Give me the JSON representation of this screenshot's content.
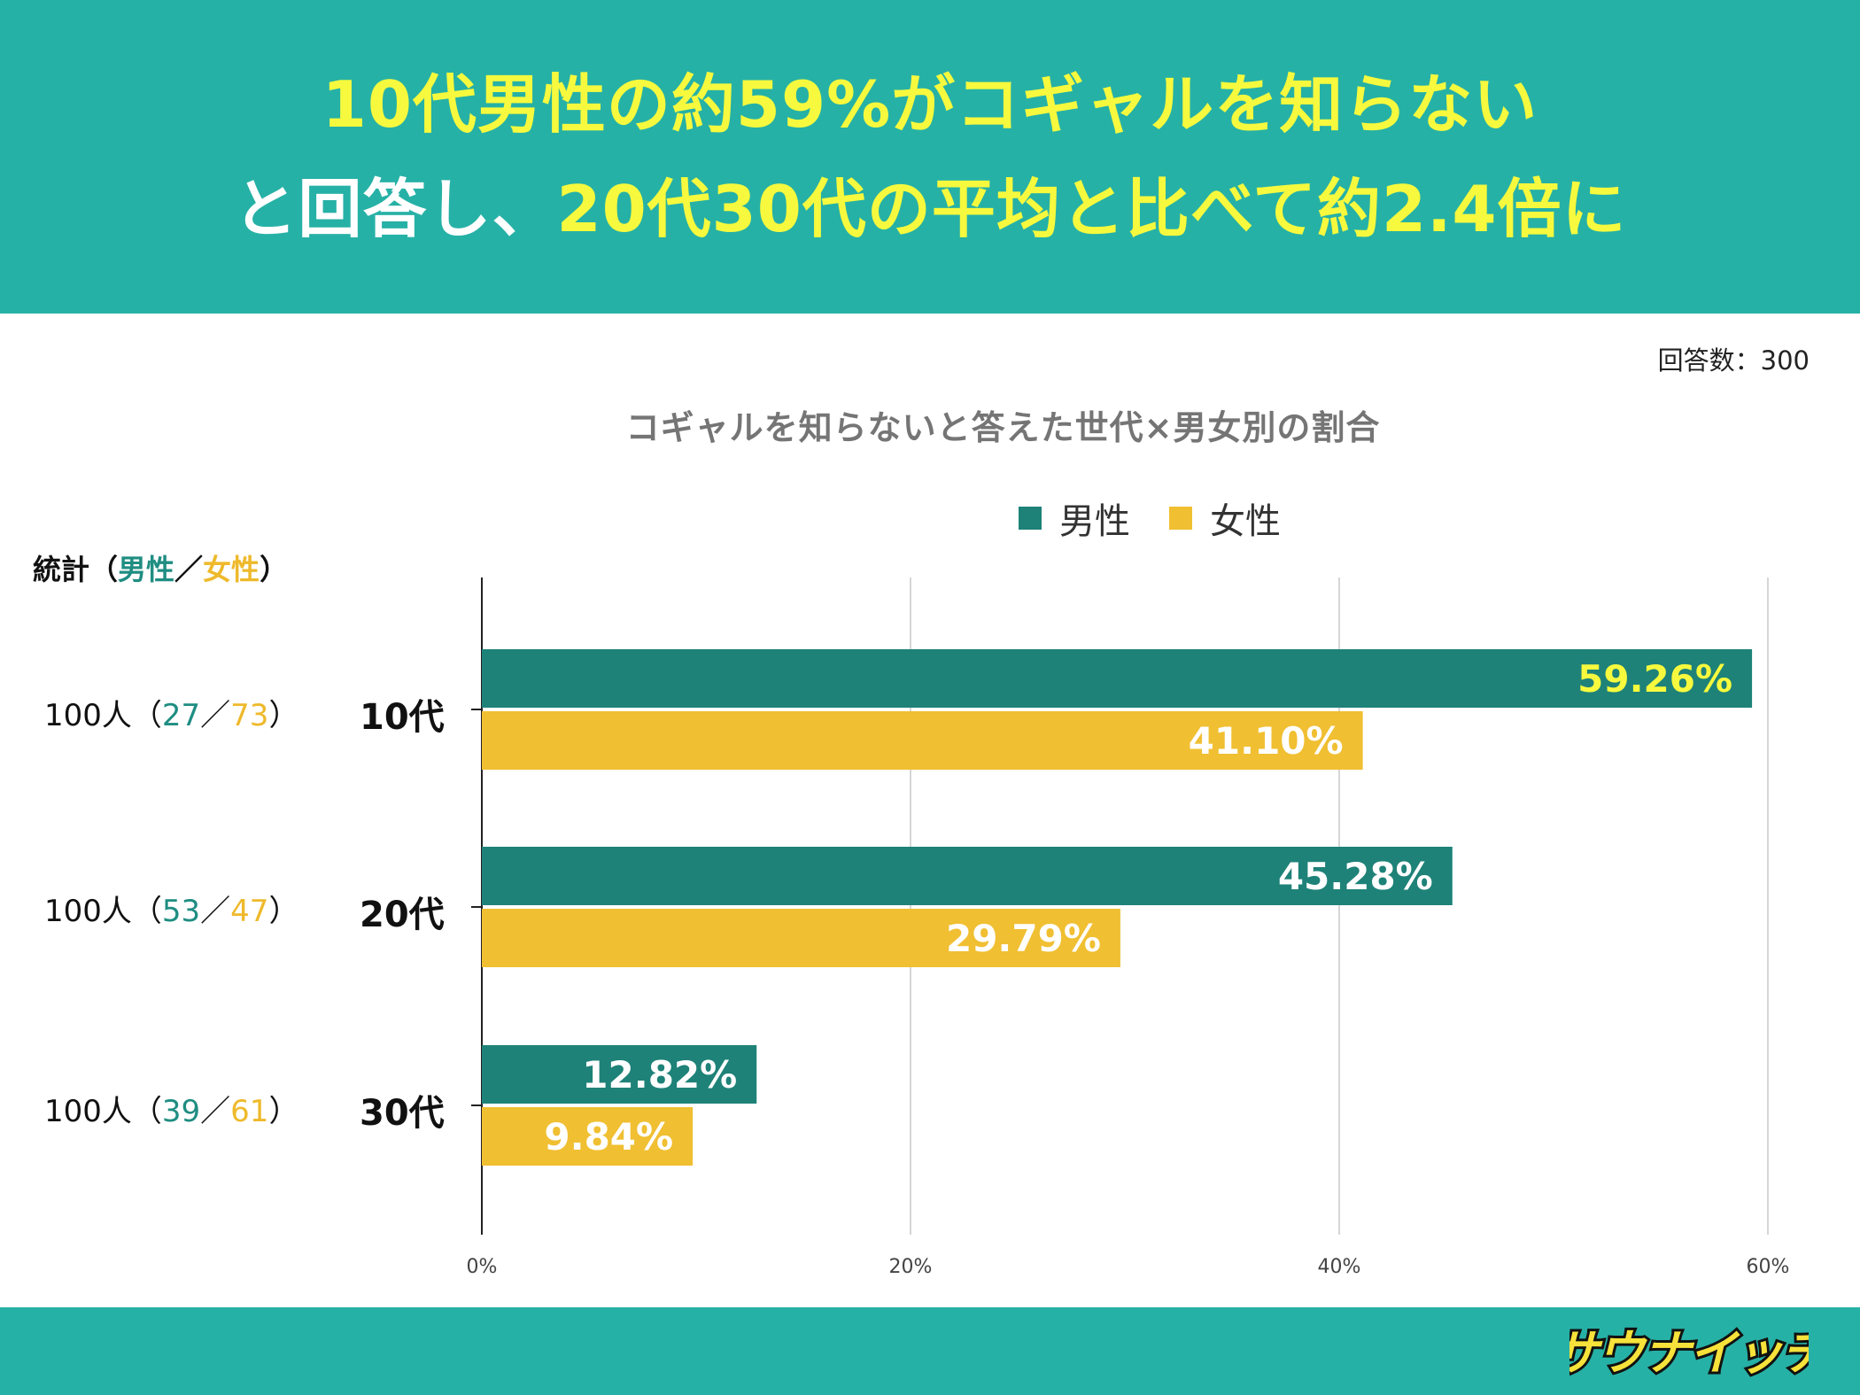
{
  "header": {
    "line1": [
      {
        "text": "10代男性の約59%がコギャルを知らない",
        "color": "yellow"
      }
    ],
    "line2": [
      {
        "text": "と回答し、",
        "color": "white"
      },
      {
        "text": "20代30代の平均と比べて約2.4倍に",
        "color": "yellow"
      }
    ]
  },
  "respondents": "回答数：300",
  "stats": {
    "header": {
      "label": "統計（",
      "male": "男性",
      "sep": "／",
      "female": "女性",
      "close": "）"
    },
    "rows": [
      {
        "total": "100人（",
        "male": "27",
        "sep": "／",
        "female": "73",
        "close": "）"
      },
      {
        "total": "100人（",
        "male": "53",
        "sep": "／",
        "female": "47",
        "close": "）"
      },
      {
        "total": "100人（",
        "male": "39",
        "sep": "／",
        "female": "61",
        "close": "）"
      }
    ]
  },
  "colors": {
    "male": "#1e8278",
    "female": "#f0bf32",
    "male_label_10s": "#f6f93d",
    "label": "#ffffff"
  },
  "chart_data": {
    "type": "bar",
    "orientation": "horizontal",
    "title": "コギャルを知らないと答えた世代×男女別の割合",
    "categories": [
      "10代",
      "20代",
      "30代"
    ],
    "series": [
      {
        "name": "男性",
        "values": [
          59.26,
          45.28,
          12.82
        ],
        "labels": [
          "59.26%",
          "45.28%",
          "12.82%"
        ]
      },
      {
        "name": "女性",
        "values": [
          41.1,
          29.79,
          9.84
        ],
        "labels": [
          "41.10%",
          "29.79%",
          "9.84%"
        ]
      }
    ],
    "xlim": [
      0,
      60
    ],
    "xticks": [
      "0%",
      "20%",
      "40%",
      "60%"
    ],
    "xtick_values": [
      0,
      20,
      40,
      60
    ],
    "legend": "top-center",
    "grid": true
  },
  "logo_text": "サウナイッチ"
}
